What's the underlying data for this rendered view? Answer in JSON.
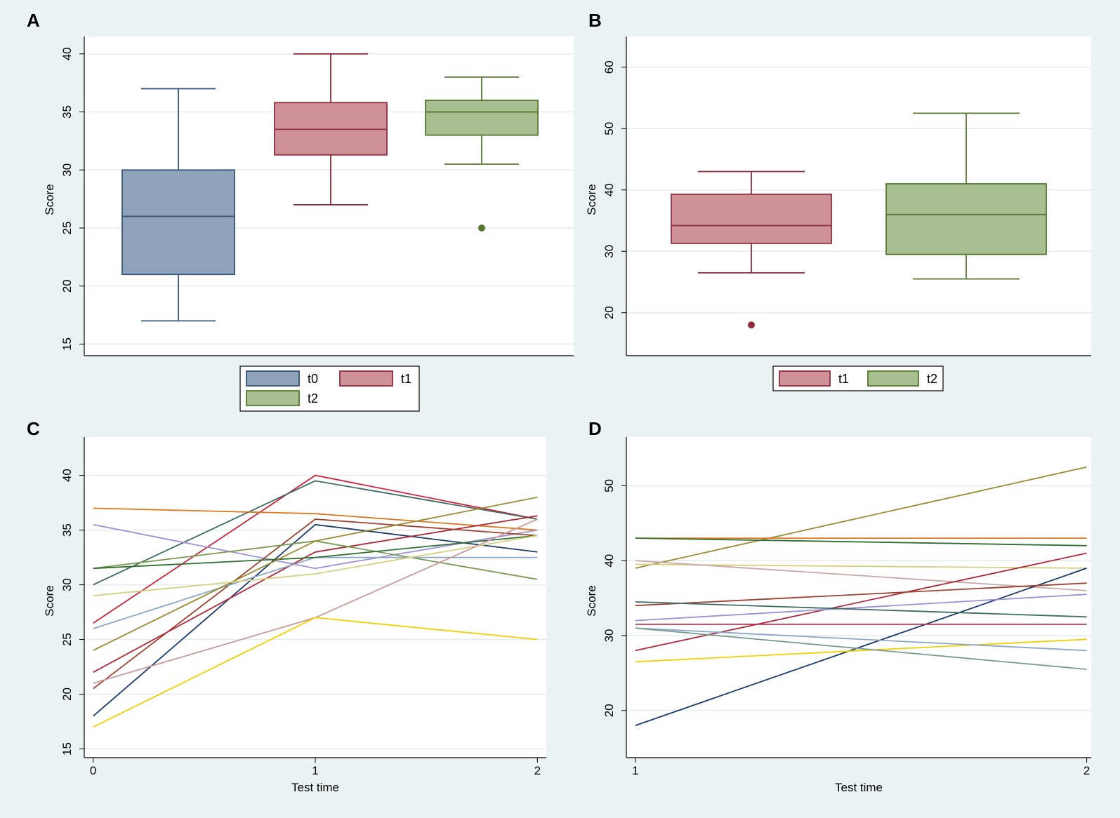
{
  "chart_data": [
    {
      "panel": "A",
      "type": "box",
      "ylabel": "Score",
      "ylim": [
        14,
        41.5
      ],
      "yticks": [
        15,
        20,
        25,
        30,
        35,
        40
      ],
      "grid": true,
      "legend": [
        "t0",
        "t1",
        "t2"
      ],
      "legend_placement": "bottom",
      "series": [
        {
          "name": "t0",
          "color": "#33557a",
          "fill": "#8ea3b9",
          "min": 17,
          "q1": 21,
          "median": 26,
          "q3": 30,
          "max": 37,
          "outliers": []
        },
        {
          "name": "t1",
          "color": "#912b3c",
          "fill": "#cf9299",
          "min": 27,
          "q1": 31.3,
          "median": 33.5,
          "q3": 35.8,
          "max": 40,
          "outliers": []
        },
        {
          "name": "t2",
          "color": "#55782e",
          "fill": "#a7bf91",
          "min": 30.5,
          "q1": 33,
          "median": 35,
          "q3": 36,
          "max": 38,
          "outliers": [
            25
          ]
        }
      ]
    },
    {
      "panel": "B",
      "type": "box",
      "ylabel": "Score",
      "ylim": [
        13,
        65
      ],
      "yticks": [
        20,
        30,
        40,
        50,
        60
      ],
      "grid": true,
      "legend": [
        "t1",
        "t2"
      ],
      "legend_placement": "bottom",
      "series": [
        {
          "name": "t1",
          "color": "#912b3c",
          "fill": "#cf9299",
          "min": 26.5,
          "q1": 31.3,
          "median": 34.2,
          "q3": 39.3,
          "max": 43,
          "outliers": [
            18
          ]
        },
        {
          "name": "t2",
          "color": "#55782e",
          "fill": "#a7bf91",
          "min": 25.5,
          "q1": 29.5,
          "median": 36,
          "q3": 41,
          "max": 52.5,
          "outliers": []
        }
      ]
    },
    {
      "panel": "C",
      "type": "line",
      "xlabel": "Test time",
      "ylabel": "Score",
      "xlim": [
        -0.04,
        2.04
      ],
      "ylim": [
        14.2,
        43.5
      ],
      "xticks": [
        0,
        1,
        2
      ],
      "yticks": [
        15,
        20,
        25,
        30,
        35,
        40
      ],
      "grid": true,
      "x": [
        0,
        1,
        2
      ],
      "series": [
        {
          "color": "#d0203a",
          "values": [
            26.5,
            40,
            36
          ]
        },
        {
          "color": "#3c6b63",
          "values": [
            30,
            39.5,
            36
          ]
        },
        {
          "color": "#e07820",
          "values": [
            37,
            36.5,
            35
          ]
        },
        {
          "color": "#9a8fd8",
          "values": [
            35.5,
            31.5,
            35
          ]
        },
        {
          "color": "#1a3a6a",
          "values": [
            18,
            35.5,
            33
          ]
        },
        {
          "color": "#a04030",
          "values": [
            20.5,
            36,
            34.5
          ]
        },
        {
          "color": "#b02838",
          "values": [
            22,
            33,
            36.3
          ]
        },
        {
          "color": "#7a9a50",
          "values": [
            31.5,
            34,
            30.5
          ]
        },
        {
          "color": "#8aa6c8",
          "values": [
            26,
            32.5,
            32.5
          ]
        },
        {
          "color": "#2e7030",
          "values": [
            31.5,
            32.5,
            34.5
          ]
        },
        {
          "color": "#9a8a30",
          "values": [
            24,
            34,
            38
          ]
        },
        {
          "color": "#d4d080",
          "values": [
            29,
            31,
            34.5
          ]
        },
        {
          "color": "#c89a9a",
          "values": [
            21,
            27,
            36
          ]
        },
        {
          "color": "#f0d000",
          "values": [
            17,
            27,
            25
          ]
        }
      ]
    },
    {
      "panel": "D",
      "type": "line",
      "xlabel": "Test time",
      "ylabel": "Score",
      "xlim": [
        0.98,
        2.01
      ],
      "ylim": [
        13.7,
        56.5
      ],
      "xticks": [
        1,
        2
      ],
      "yticks": [
        20,
        30,
        40,
        50
      ],
      "grid": true,
      "x": [
        1,
        2
      ],
      "series": [
        {
          "color": "#9a8a30",
          "values": [
            39,
            52.5
          ]
        },
        {
          "color": "#e07820",
          "values": [
            43,
            43
          ]
        },
        {
          "color": "#2e7030",
          "values": [
            43,
            42
          ]
        },
        {
          "color": "#d4d080",
          "values": [
            39.5,
            39
          ]
        },
        {
          "color": "#c8a8a8",
          "values": [
            40,
            36
          ]
        },
        {
          "color": "#b02838",
          "values": [
            28,
            41
          ]
        },
        {
          "color": "#1a3a6a",
          "values": [
            18,
            39
          ]
        },
        {
          "color": "#a04030",
          "values": [
            34,
            37
          ]
        },
        {
          "color": "#9a8fd8",
          "values": [
            32,
            35.5
          ]
        },
        {
          "color": "#3c6b63",
          "values": [
            34.5,
            32.5
          ]
        },
        {
          "color": "#c0304a",
          "values": [
            31.5,
            31.5
          ]
        },
        {
          "color": "#f0d000",
          "values": [
            26.5,
            29.5
          ]
        },
        {
          "color": "#8aa6c8",
          "values": [
            31,
            28
          ]
        },
        {
          "color": "#7a9a90",
          "values": [
            31,
            25.5
          ]
        }
      ]
    }
  ]
}
